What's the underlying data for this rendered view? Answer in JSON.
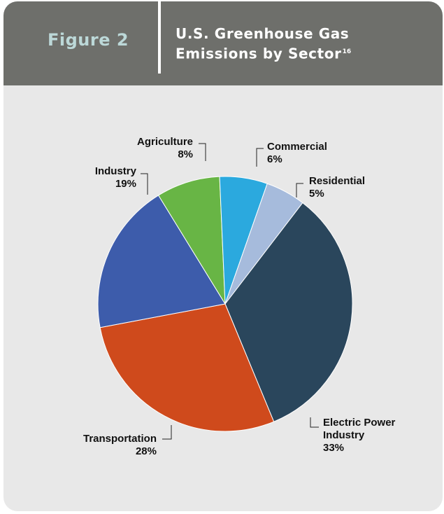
{
  "figure": {
    "label": "Figure 2",
    "title": "U.S. Greenhouse Gas Emissions by Sector",
    "footnote": "16"
  },
  "chart_data": {
    "type": "pie",
    "title": "U.S. Greenhouse Gas Emissions by Sector",
    "categories": [
      "Electric Power Industry",
      "Transportation",
      "Industry",
      "Agriculture",
      "Commercial",
      "Residential"
    ],
    "values": [
      33,
      28,
      19,
      8,
      6,
      5
    ],
    "unit": "%",
    "legend": "none (direct labels)",
    "slices": [
      {
        "name": "Electric Power Industry",
        "name_lines": [
          "Electric Power",
          "Industry"
        ],
        "value": 33,
        "pct_label": "33%",
        "color": "#2a465c"
      },
      {
        "name": "Transportation",
        "name_lines": [
          "Transportation"
        ],
        "value": 28,
        "pct_label": "28%",
        "color": "#cf4a1c"
      },
      {
        "name": "Industry",
        "name_lines": [
          "Industry"
        ],
        "value": 19,
        "pct_label": "19%",
        "color": "#3d5cab"
      },
      {
        "name": "Agriculture",
        "name_lines": [
          "Agriculture"
        ],
        "value": 8,
        "pct_label": "8%",
        "color": "#68b545"
      },
      {
        "name": "Commercial",
        "name_lines": [
          "Commercial"
        ],
        "value": 6,
        "pct_label": "6%",
        "color": "#2ba9de"
      },
      {
        "name": "Residential",
        "name_lines": [
          "Residential"
        ],
        "value": 5,
        "pct_label": "5%",
        "color": "#a6bbdc"
      }
    ]
  }
}
